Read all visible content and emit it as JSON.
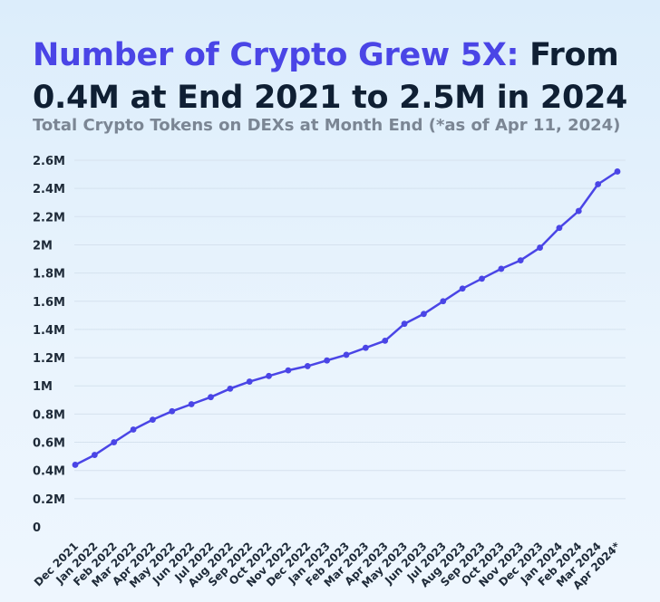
{
  "title": {
    "accent": "Number of Crypto Grew 5X:",
    "rest": " From 0.4M at End 2021 to 2.5M in 2024"
  },
  "subtitle": "Total Crypto Tokens on DEXs at Month End (*as of Apr 11, 2024)",
  "colors": {
    "line": "#4a45e6",
    "grid": "#d5e2ee",
    "accent": "#4a45e6"
  },
  "chart_data": {
    "type": "line",
    "title": "Number of Crypto Grew 5X: From 0.4M at End 2021 to 2.5M in 2024",
    "subtitle": "Total Crypto Tokens on DEXs at Month End (*as of Apr 11, 2024)",
    "xlabel": "",
    "ylabel": "",
    "ylim": [
      0,
      2.6
    ],
    "yticks": [
      0,
      0.2,
      0.4,
      0.6,
      0.8,
      1.0,
      1.2,
      1.4,
      1.6,
      1.8,
      2.0,
      2.2,
      2.4,
      2.6
    ],
    "ytick_labels": [
      "0",
      "0.2M",
      "0.4M",
      "0.6M",
      "0.8M",
      "1M",
      "1.2M",
      "1.4M",
      "1.6M",
      "1.8M",
      "2M",
      "2.2M",
      "2.4M",
      "2.6M"
    ],
    "grid": true,
    "categories": [
      "Dec 2021",
      "Jan 2022",
      "Feb 2022",
      "Mar 2022",
      "Apr 2022",
      "May 2022",
      "Jun 2022",
      "Jul 2022",
      "Aug 2022",
      "Sep 2022",
      "Oct 2022",
      "Nov 2022",
      "Dec 2022",
      "Jan 2023",
      "Feb 2023",
      "Mar 2023",
      "Apr 2023",
      "May 2023",
      "Jun 2023",
      "Jul 2023",
      "Aug 2023",
      "Sep 2023",
      "Oct 2023",
      "Nov 2023",
      "Dec 2023",
      "Jan 2024",
      "Feb 2024",
      "Mar 2024",
      "Apr 2024*"
    ],
    "series": [
      {
        "values": [
          0.44,
          0.51,
          0.6,
          0.69,
          0.76,
          0.82,
          0.87,
          0.92,
          0.98,
          1.03,
          1.07,
          1.11,
          1.14,
          1.18,
          1.22,
          1.27,
          1.32,
          1.44,
          1.51,
          1.6,
          1.69,
          1.76,
          1.83,
          1.89,
          1.98,
          2.12,
          2.24,
          2.43,
          2.52
        ]
      }
    ]
  }
}
